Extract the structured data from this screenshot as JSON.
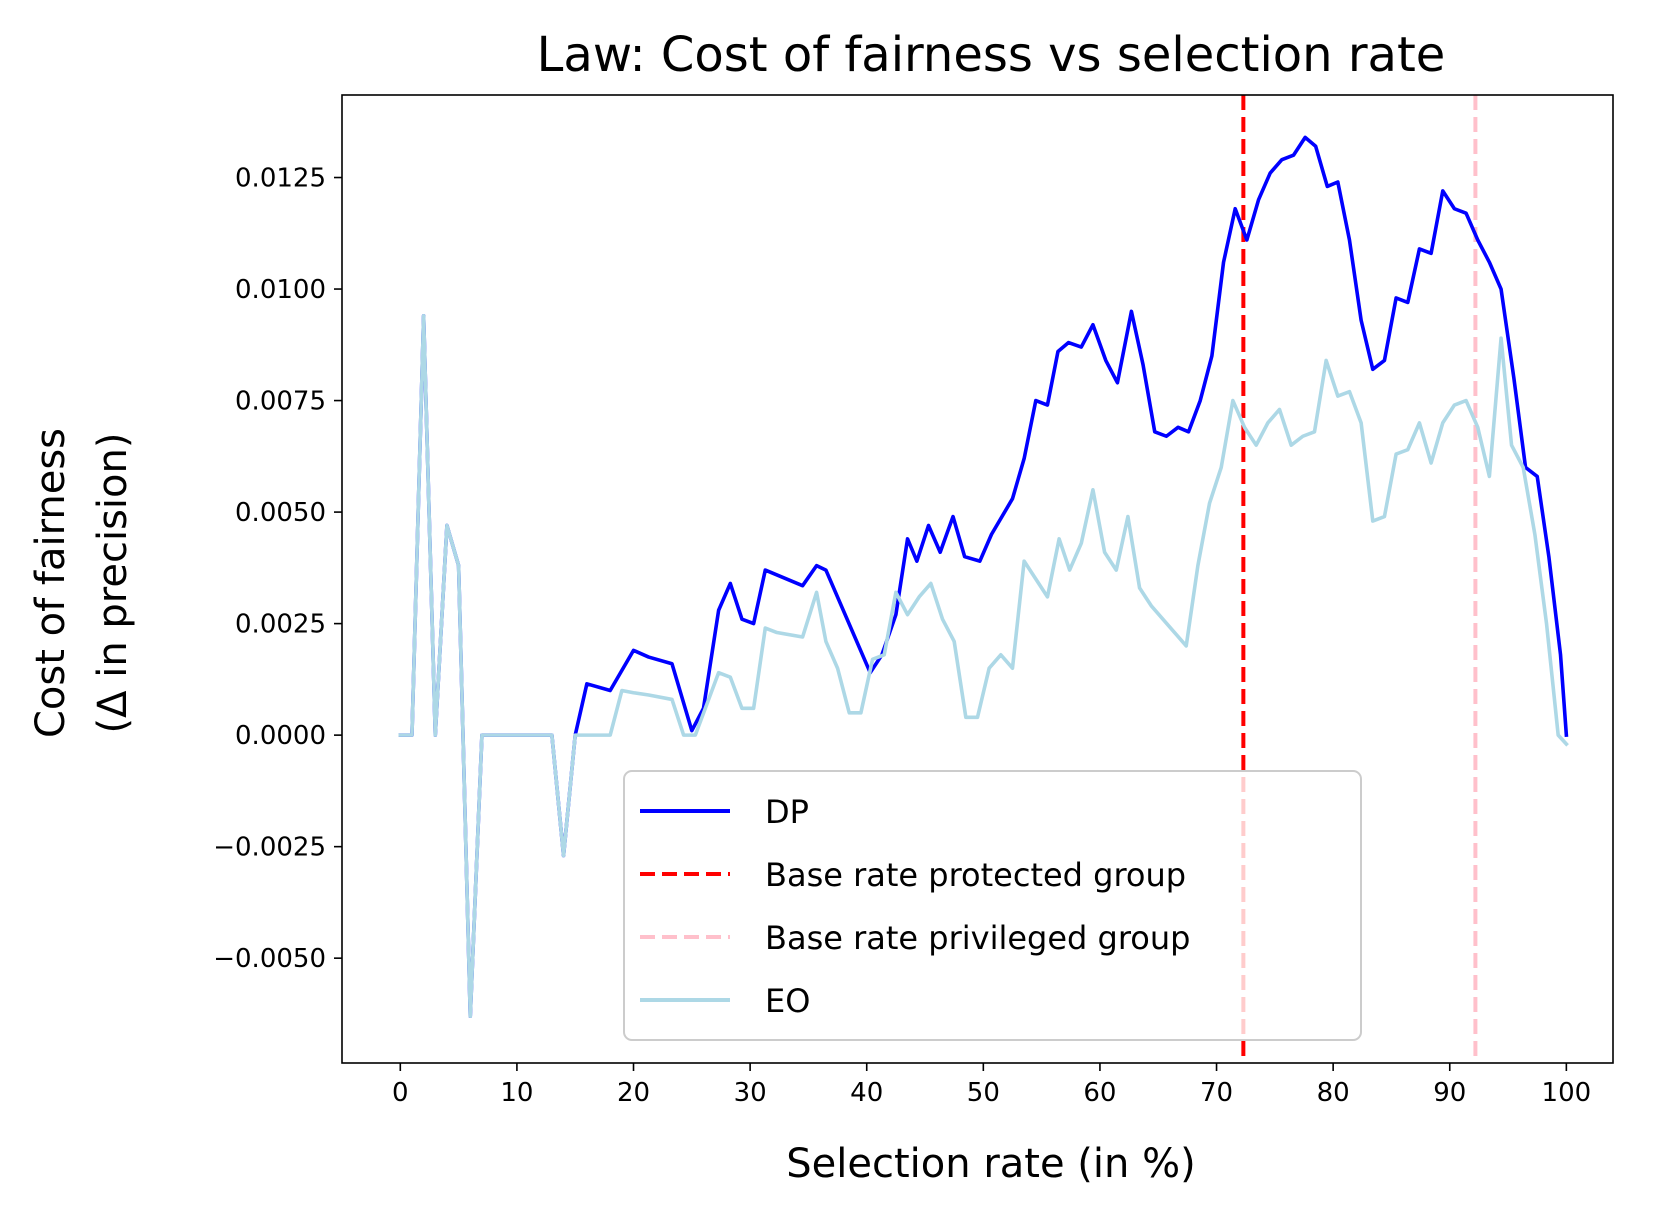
{
  "chart_data": {
    "type": "line",
    "title": "Law: Cost of fairness vs selection rate",
    "xlabel": "Selection rate (in %)",
    "ylabel_lines": [
      "Cost of fairness",
      "(Δ in precision)"
    ],
    "xlim": [
      -5,
      104
    ],
    "ylim": [
      -0.00735,
      0.01435
    ],
    "xticks": [
      0,
      10,
      20,
      30,
      40,
      50,
      60,
      70,
      80,
      90,
      100
    ],
    "yticks": [
      -0.005,
      -0.0025,
      0.0,
      0.0025,
      0.005,
      0.0075,
      0.01,
      0.0125
    ],
    "ytick_labels": [
      "−0.0050",
      "−0.0025",
      "0.0000",
      "0.0025",
      "0.0050",
      "0.0075",
      "0.0100",
      "0.0125"
    ],
    "series": [
      {
        "name": "DP",
        "color": "#0000ff",
        "style": "solid",
        "x": [
          0,
          1,
          2,
          3,
          4,
          5,
          6,
          7,
          8,
          9,
          10,
          11,
          12,
          13,
          14,
          15,
          16,
          18,
          20,
          21.3,
          23.3,
          25,
          26,
          27.3,
          28.3,
          29.3,
          30.3,
          31.3,
          34.5,
          35.7,
          36.5,
          40.3,
          41.3,
          42.5,
          43.5,
          44.3,
          45.3,
          46.3,
          47.4,
          48.4,
          49.7,
          50.7,
          52.5,
          53.5,
          54.5,
          55.5,
          56.4,
          57.3,
          58.4,
          59.4,
          60.5,
          61.5,
          62.7,
          63.7,
          64.7,
          65.7,
          66.7,
          67.6,
          68.6,
          69.6,
          70.6,
          71.6,
          72.6,
          73.6,
          74.6,
          75.6,
          76.6,
          77.6,
          78.5,
          79.5,
          80.4,
          81.4,
          82.4,
          83.4,
          84.4,
          85.4,
          86.4,
          87.4,
          88.4,
          89.4,
          90.4,
          91.4,
          92.4,
          93.4,
          94.4,
          95.5,
          96.5,
          97.5,
          98.5,
          99.5,
          100
        ],
        "y": [
          0,
          0,
          0.0094,
          0,
          0.0047,
          0.0038,
          -0.0063,
          0,
          0,
          0,
          0,
          0,
          0,
          0,
          -0.0027,
          0,
          0.00115,
          0.001,
          0.0019,
          0.00175,
          0.0016,
          0.0001,
          0.0006,
          0.0028,
          0.0034,
          0.0026,
          0.0025,
          0.0037,
          0.00335,
          0.0038,
          0.0037,
          0.0014,
          0.0018,
          0.0027,
          0.0044,
          0.0039,
          0.0047,
          0.0041,
          0.0049,
          0.004,
          0.0039,
          0.0045,
          0.0053,
          0.0062,
          0.0075,
          0.0074,
          0.0086,
          0.0088,
          0.0087,
          0.0092,
          0.0084,
          0.0079,
          0.0095,
          0.0083,
          0.0068,
          0.0067,
          0.0069,
          0.0068,
          0.0075,
          0.0085,
          0.0106,
          0.0118,
          0.0111,
          0.012,
          0.0126,
          0.0129,
          0.013,
          0.0134,
          0.0132,
          0.0123,
          0.0124,
          0.0111,
          0.0093,
          0.0082,
          0.0084,
          0.0098,
          0.0097,
          0.0109,
          0.0108,
          0.0122,
          0.0118,
          0.0117,
          0.0111,
          0.0106,
          0.01,
          0.008,
          0.006,
          0.0058,
          0.004,
          0.0018,
          0
        ]
      },
      {
        "name": "Base rate protected group",
        "color": "#ff0000",
        "style": "dashed",
        "vline_x": 72.3
      },
      {
        "name": "Base rate privileged group",
        "color": "#ffc0cb",
        "style": "dashed",
        "vline_x": 92.2
      },
      {
        "name": "EO",
        "color": "#add8e6",
        "style": "solid",
        "x": [
          0,
          1,
          2,
          3,
          4,
          5,
          6,
          7,
          8,
          9,
          10,
          11,
          12,
          13,
          14,
          15,
          16,
          18,
          19,
          20,
          21.3,
          23.3,
          24.3,
          25.3,
          26.3,
          27.3,
          28.3,
          29.3,
          30.3,
          31.3,
          32.3,
          34.5,
          35.7,
          36.5,
          37.5,
          38.5,
          39.5,
          40.5,
          41.5,
          42.5,
          43.5,
          44.5,
          45.5,
          46.5,
          47.5,
          48.5,
          49.5,
          50.5,
          51.5,
          52.5,
          53.5,
          54.5,
          55.5,
          56.5,
          57.4,
          58.4,
          59.4,
          60.4,
          61.4,
          62.4,
          63.4,
          64.4,
          65.4,
          66.4,
          67.4,
          68.4,
          69.4,
          70.4,
          71.4,
          72.4,
          73.4,
          74.4,
          75.4,
          76.4,
          77.4,
          78.4,
          79.4,
          80.4,
          81.4,
          82.4,
          83.4,
          84.4,
          85.4,
          86.4,
          87.4,
          88.4,
          89.4,
          90.4,
          91.4,
          92.4,
          93.4,
          94.4,
          95.3,
          96.3,
          97.3,
          98.3,
          99.3,
          100
        ],
        "y": [
          0,
          0,
          0.0094,
          0,
          0.0047,
          0.0038,
          -0.0063,
          0,
          0,
          0,
          0,
          0,
          0,
          0,
          -0.0027,
          0,
          0,
          0,
          0.001,
          0.00095,
          0.0009,
          0.0008,
          0,
          0,
          0.0007,
          0.0014,
          0.0013,
          0.0006,
          0.0006,
          0.0024,
          0.0023,
          0.0022,
          0.0032,
          0.0021,
          0.0015,
          0.0005,
          0.0005,
          0.0017,
          0.0018,
          0.0032,
          0.0027,
          0.0031,
          0.0034,
          0.0026,
          0.0021,
          0.0004,
          0.0004,
          0.0015,
          0.0018,
          0.0015,
          0.0039,
          0.0035,
          0.0031,
          0.0044,
          0.0037,
          0.0043,
          0.0055,
          0.0041,
          0.0037,
          0.0049,
          0.0033,
          0.0029,
          0.0026,
          0.0023,
          0.002,
          0.0038,
          0.0052,
          0.006,
          0.0075,
          0.0069,
          0.0065,
          0.007,
          0.0073,
          0.0065,
          0.0067,
          0.0068,
          0.0084,
          0.0076,
          0.0077,
          0.007,
          0.0048,
          0.0049,
          0.0063,
          0.0064,
          0.007,
          0.0061,
          0.007,
          0.0074,
          0.0075,
          0.0069,
          0.0058,
          0.0089,
          0.0065,
          0.006,
          0.0045,
          0.0025,
          0,
          -0.0002
        ]
      }
    ],
    "legend": {
      "position": "lower-center",
      "entries": [
        "DP",
        "Base rate protected group",
        "Base rate privileged group",
        "EO"
      ]
    },
    "grid": false
  }
}
